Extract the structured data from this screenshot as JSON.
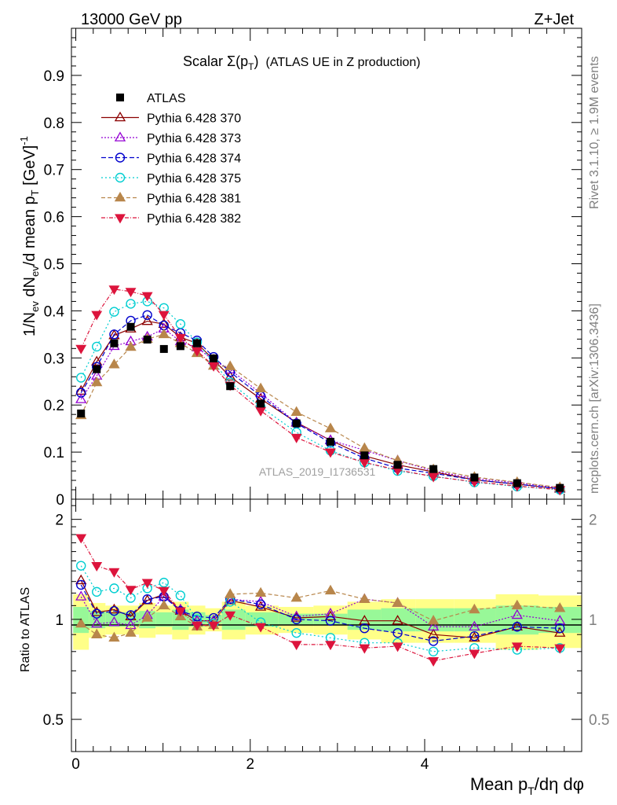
{
  "header": {
    "left": "13000 GeV pp",
    "right": "Z+Jet"
  },
  "side": {
    "rivet": "Rivet 3.1.10, ≥ 1.9M events",
    "mcplots": "mcplots.cern.ch [arXiv:1306.3436]"
  },
  "chart_data": [
    {
      "type": "scatter",
      "title": "Scalar Σ(pT) (ATLAS UE in Z production)",
      "title_parts": {
        "main": "Scalar Σ(p",
        "sub": "T",
        "close": ")",
        "rest": "(ATLAS UE in Z production)"
      },
      "watermark": "ATLAS_2019_I1736531",
      "ylabel": "1/Nev dNev/d mean pT [GeV]-1",
      "ylabel_parts": {
        "a": "1/N",
        "b": "ev",
        "c": " dN",
        "d": "ev",
        "e": "/d mean p",
        "f": "T",
        "g": " [GeV]",
        "h": "-1"
      },
      "xlim": [
        -0.05,
        5.8
      ],
      "ylim": [
        0,
        1.0
      ],
      "yticks": [
        "0",
        "0.1",
        "0.2",
        "0.3",
        "0.4",
        "0.5",
        "0.6",
        "0.7",
        "0.8",
        "0.9"
      ],
      "legend_position": "top-left",
      "x": [
        0.06,
        0.24,
        0.44,
        0.63,
        0.82,
        1.01,
        1.2,
        1.39,
        1.58,
        1.77,
        2.12,
        2.53,
        2.92,
        3.31,
        3.69,
        4.1,
        4.57,
        5.06,
        5.55
      ],
      "atlas": {
        "name": "ATLAS",
        "values": [
          0.182,
          0.276,
          0.331,
          0.366,
          0.339,
          0.319,
          0.325,
          0.331,
          0.299,
          0.24,
          0.203,
          0.161,
          0.122,
          0.093,
          0.073,
          0.064,
          0.046,
          0.034,
          0.024
        ]
      },
      "series": [
        {
          "name": "Pythia 6.428 370",
          "color": "#8b0000",
          "dash": "",
          "marker": "triangle-open",
          "values": [
            0.23,
            0.292,
            0.348,
            0.362,
            0.378,
            0.372,
            0.344,
            0.331,
            0.296,
            0.26,
            0.213,
            0.163,
            0.125,
            0.092,
            0.073,
            0.058,
            0.041,
            0.032,
            0.022
          ]
        },
        {
          "name": "Pythia 6.428 373",
          "color": "#9400d3",
          "dash": "2,2",
          "marker": "triangle-open",
          "values": [
            0.212,
            0.262,
            0.325,
            0.335,
            0.345,
            0.362,
            0.335,
            0.322,
            0.295,
            0.275,
            0.225,
            0.162,
            0.125,
            0.104,
            0.082,
            0.06,
            0.044,
            0.035,
            0.024
          ]
        },
        {
          "name": "Pythia 6.428 374",
          "color": "#0000cd",
          "dash": "6,3",
          "marker": "circle-open",
          "values": [
            0.226,
            0.281,
            0.35,
            0.379,
            0.391,
            0.369,
            0.353,
            0.337,
            0.302,
            0.27,
            0.219,
            0.161,
            0.12,
            0.087,
            0.066,
            0.055,
            0.041,
            0.032,
            0.022
          ]
        },
        {
          "name": "Pythia 6.428 375",
          "color": "#00ced1",
          "dash": "2,3",
          "marker": "circle-open",
          "values": [
            0.258,
            0.324,
            0.398,
            0.415,
            0.42,
            0.406,
            0.372,
            0.333,
            0.29,
            0.248,
            0.196,
            0.142,
            0.103,
            0.078,
            0.06,
            0.049,
            0.036,
            0.027,
            0.02
          ]
        },
        {
          "name": "Pythia 6.428 381",
          "color": "#b8864b",
          "dash": "5,3",
          "marker": "triangle-filled",
          "values": [
            0.178,
            0.248,
            0.286,
            0.323,
            0.34,
            0.35,
            0.331,
            0.31,
            0.283,
            0.282,
            0.235,
            0.185,
            0.15,
            0.108,
            0.082,
            0.063,
            0.047,
            0.036,
            0.025
          ]
        },
        {
          "name": "Pythia 6.428 382",
          "color": "#dc143c",
          "dash": "5,2,1,2",
          "marker": "triangle-down-filled",
          "values": [
            0.32,
            0.392,
            0.446,
            0.441,
            0.432,
            0.392,
            0.343,
            0.315,
            0.283,
            0.242,
            0.188,
            0.131,
            0.1,
            0.078,
            0.062,
            0.048,
            0.037,
            0.028,
            0.02
          ]
        }
      ]
    },
    {
      "type": "scatter",
      "ylabel": "Ratio to ATLAS",
      "xlabel": "Mean pT/dη dφ",
      "xlabel_parts": {
        "a": "Mean p",
        "b": "T",
        "c": "/dη dφ"
      },
      "xlim": [
        -0.05,
        5.8
      ],
      "ylim": [
        0.4,
        2.3
      ],
      "log_y": true,
      "xticks": [
        "0",
        "2",
        "4"
      ],
      "yticks_left": [
        "0.5",
        "1",
        "2"
      ],
      "yticks_right": [
        "0.5",
        "1",
        "2"
      ],
      "band_inner": [
        0.91,
        0.94,
        0.95,
        0.95,
        0.94,
        0.95,
        0.93,
        0.95,
        0.97,
        0.93,
        0.95,
        0.96,
        0.96,
        0.93,
        0.92,
        0.92,
        0.92,
        0.9,
        0.91
      ],
      "band_inner_hi": [
        1.09,
        1.06,
        1.05,
        1.05,
        1.06,
        1.05,
        1.07,
        1.05,
        1.03,
        1.07,
        1.05,
        1.04,
        1.04,
        1.07,
        1.08,
        1.08,
        1.08,
        1.1,
        1.09
      ],
      "band_outer": [
        0.81,
        0.88,
        0.9,
        0.9,
        0.88,
        0.9,
        0.87,
        0.9,
        0.92,
        0.87,
        0.9,
        0.91,
        0.9,
        0.87,
        0.85,
        0.85,
        0.85,
        0.81,
        0.82
      ],
      "band_outer_hi": [
        1.19,
        1.12,
        1.1,
        1.1,
        1.12,
        1.1,
        1.13,
        1.1,
        1.08,
        1.13,
        1.1,
        1.09,
        1.1,
        1.13,
        1.15,
        1.15,
        1.15,
        1.19,
        1.18
      ],
      "ratios": [
        [
          1.31,
          1.05,
          1.07,
          1.02,
          1.14,
          1.19,
          1.06,
          0.99,
          0.99,
          1.14,
          1.09,
          1.01,
          1.02,
          0.99,
          0.99,
          0.9,
          0.88,
          0.95,
          0.91
        ],
        [
          1.17,
          0.97,
          0.98,
          0.96,
          1.03,
          1.17,
          1.07,
          0.99,
          0.99,
          1.15,
          1.13,
          1.02,
          1.04,
          1.15,
          1.12,
          0.95,
          0.95,
          1.03,
          0.99
        ],
        [
          1.27,
          1.04,
          1.06,
          1.03,
          1.15,
          1.17,
          1.06,
          1.02,
          1.01,
          1.15,
          1.11,
          1.0,
          0.99,
          0.94,
          0.91,
          0.86,
          0.89,
          0.95,
          0.94
        ],
        [
          1.45,
          1.21,
          1.24,
          1.16,
          1.24,
          1.29,
          1.18,
          1.0,
          0.97,
          1.13,
          0.98,
          0.91,
          0.88,
          0.85,
          0.85,
          0.8,
          0.82,
          0.81,
          0.82
        ],
        [
          0.97,
          0.9,
          0.88,
          0.91,
          1.01,
          1.1,
          1.02,
          0.95,
          0.96,
          1.19,
          1.2,
          1.16,
          1.22,
          1.15,
          1.12,
          0.99,
          1.07,
          1.1,
          1.08
        ],
        [
          1.76,
          1.45,
          1.39,
          1.23,
          1.29,
          1.22,
          1.06,
          0.96,
          0.96,
          1.03,
          0.95,
          0.84,
          0.84,
          0.82,
          0.83,
          0.75,
          0.79,
          0.83,
          0.82
        ]
      ]
    }
  ]
}
